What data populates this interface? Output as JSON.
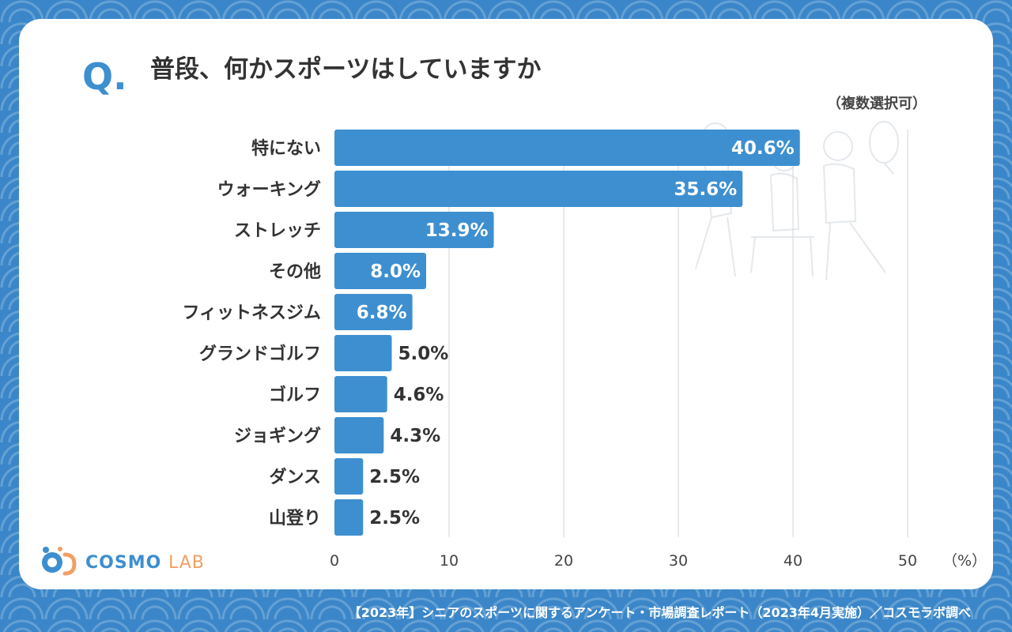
{
  "question": {
    "mark": "Q.",
    "title": "普段、何かスポーツはしていますか",
    "note": "（複数選択可）"
  },
  "colors": {
    "bar": "#3d8fd0",
    "background": "#3a86c8",
    "card": "#ffffff"
  },
  "chart_data": {
    "type": "bar",
    "orientation": "horizontal",
    "categories": [
      "特にない",
      "ウォーキング",
      "ストレッチ",
      "その他",
      "フィットネスジム",
      "グランドゴルフ",
      "ゴルフ",
      "ジョギング",
      "ダンス",
      "山登り"
    ],
    "values": [
      40.6,
      35.6,
      13.9,
      8.0,
      6.8,
      5.0,
      4.6,
      4.3,
      2.5,
      2.5
    ],
    "value_labels": [
      "40.6%",
      "35.6%",
      "13.9%",
      "8.0%",
      "6.8%",
      "5.0%",
      "4.6%",
      "4.3%",
      "2.5%",
      "2.5%"
    ],
    "xlim": [
      0,
      50
    ],
    "xticks": [
      "0",
      "10",
      "20",
      "30",
      "40",
      "50"
    ],
    "xunit": "（%）",
    "grid": true
  },
  "logo": {
    "name_main": "COSMO",
    "name_sub": "LAB"
  },
  "footer": {
    "source": "【2023年】シニアのスポーツに関するアンケート・市場調査レポート（2023年4月実施）／コスモラボ調べ"
  }
}
